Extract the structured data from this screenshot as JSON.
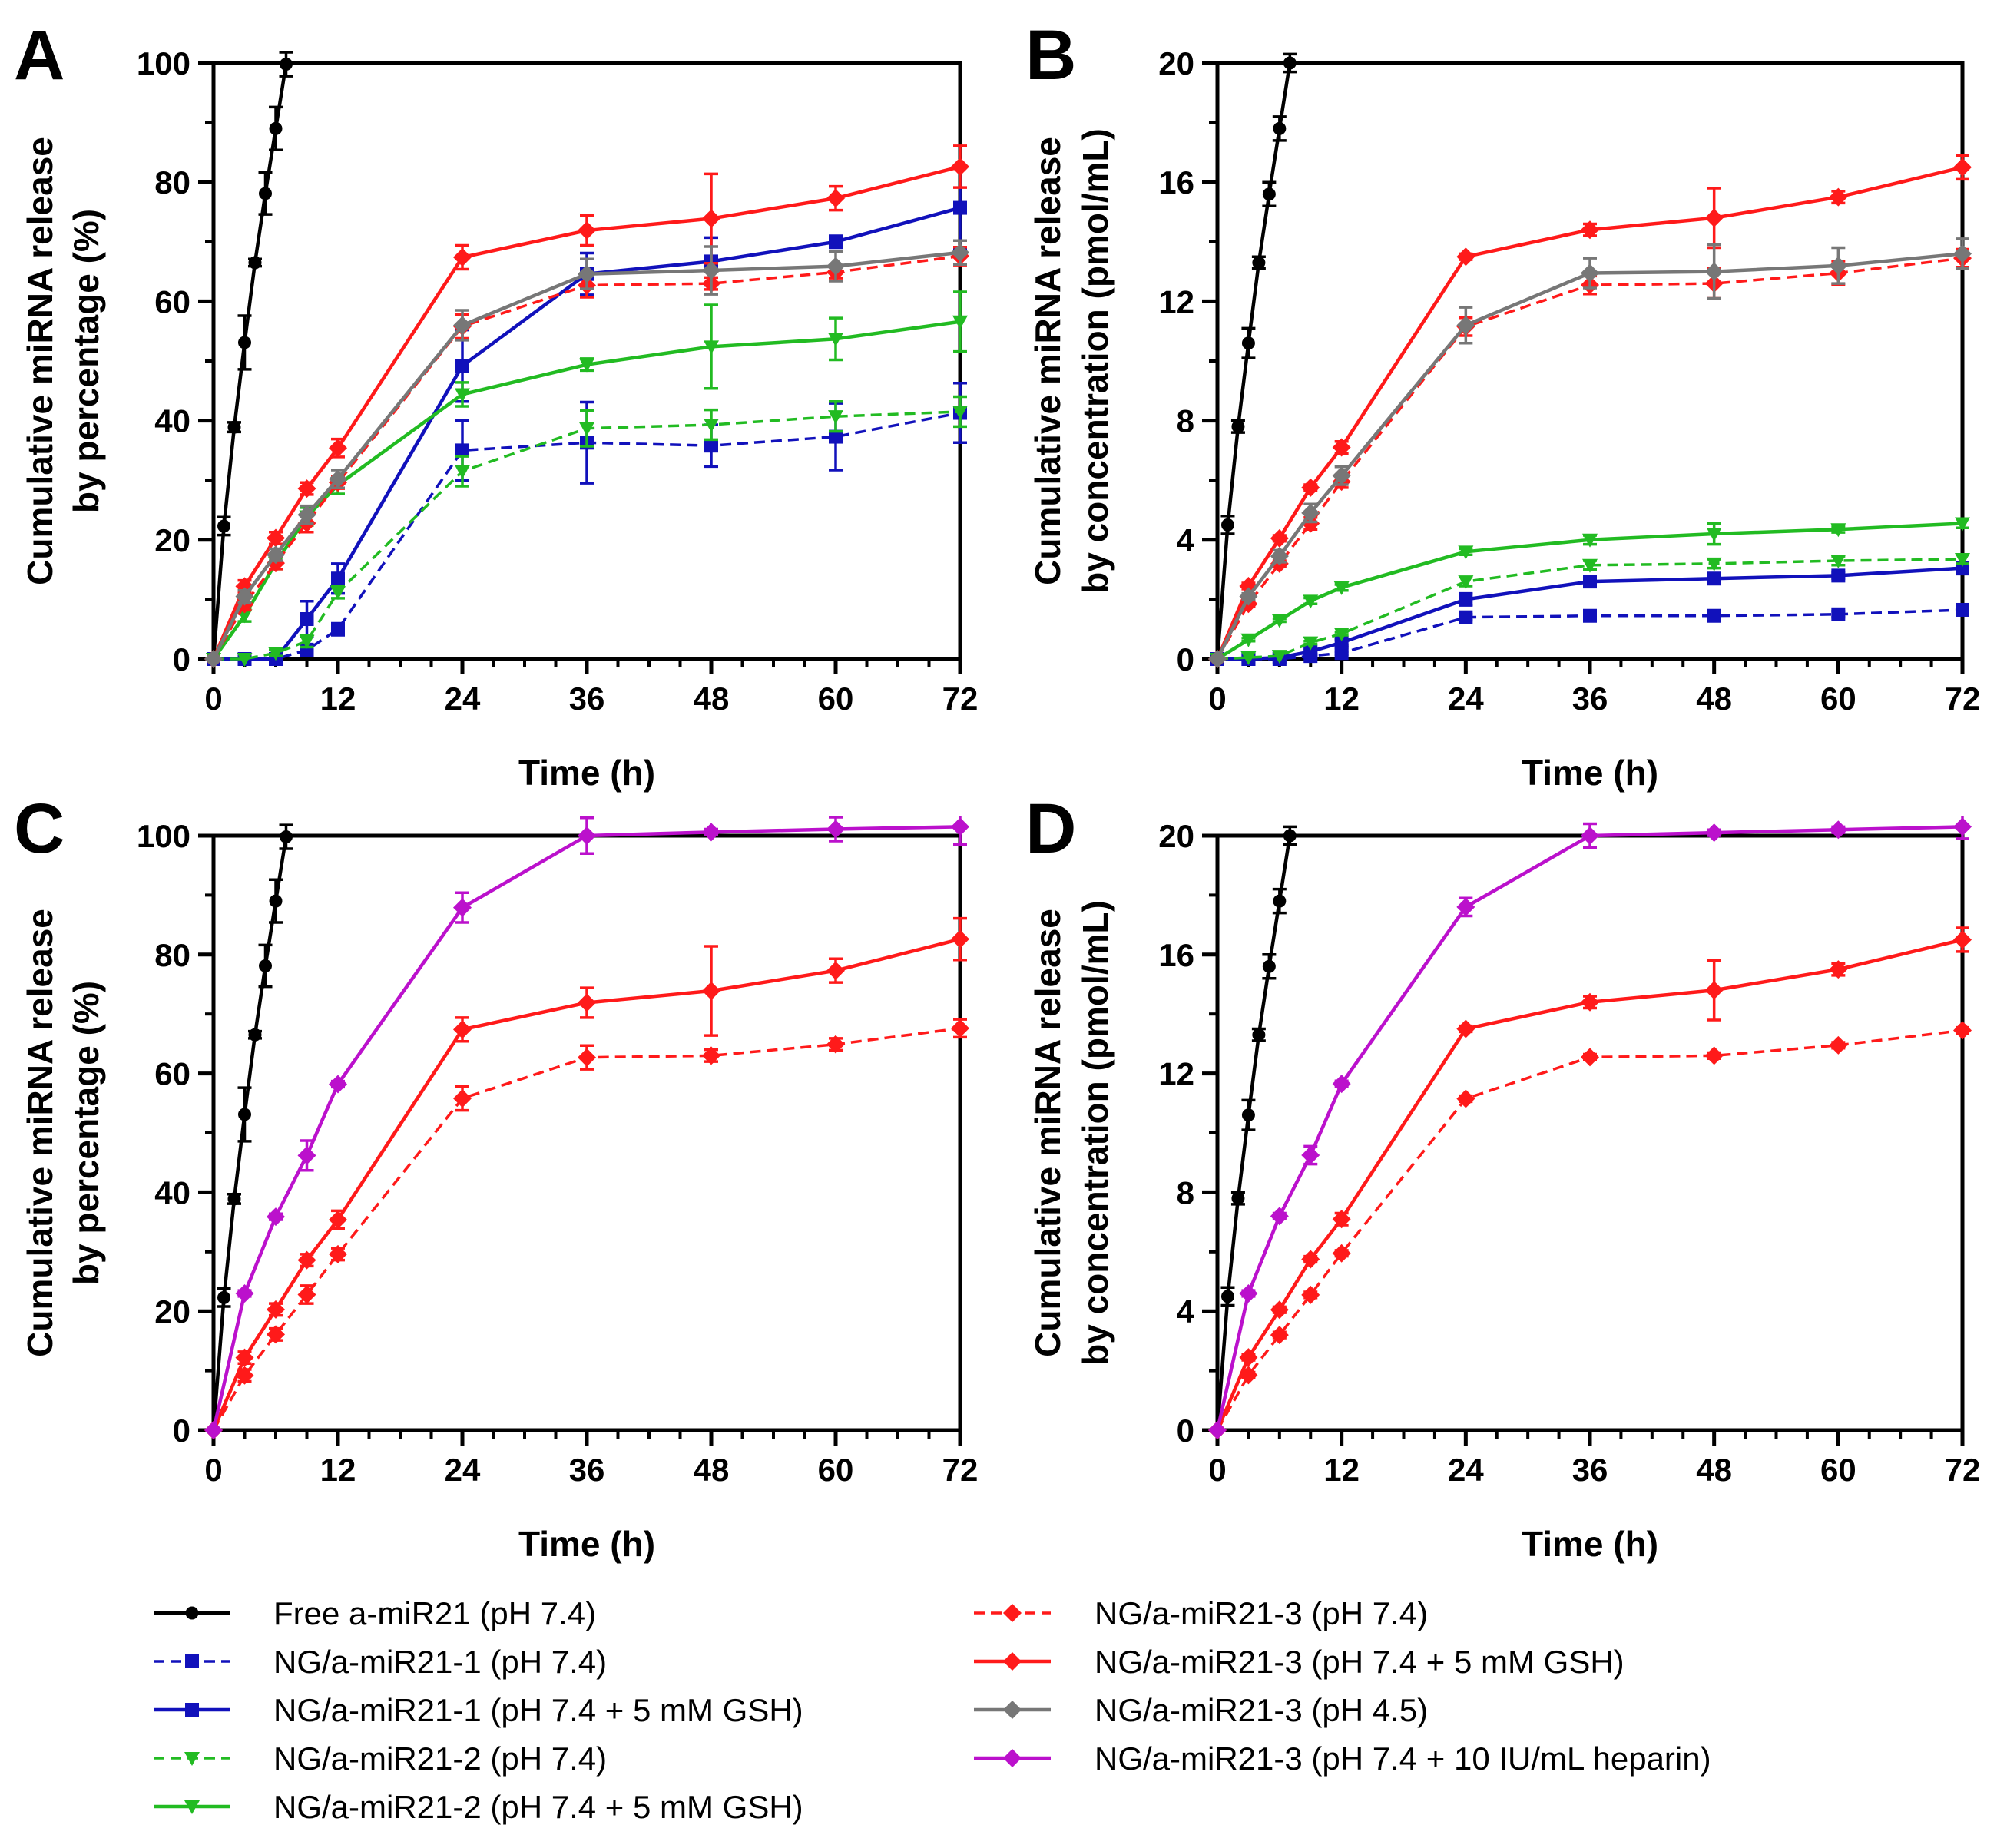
{
  "colors": {
    "free": "#000000",
    "ng1": "#1111bb",
    "ng2": "#22bb22",
    "ng3": "#ff1a1a",
    "ng3_ph45": "#777777",
    "ng3_heparin": "#bb11cc"
  },
  "legend": [
    {
      "key": "free",
      "label": "Free a-miR21 (pH 7.4)",
      "marker": "circle",
      "dash": false,
      "color_key": "free"
    },
    {
      "key": "ng1_74",
      "label": "NG/a-miR21-1 (pH 7.4)",
      "marker": "square",
      "dash": true,
      "color_key": "ng1"
    },
    {
      "key": "ng1_gsh",
      "label": "NG/a-miR21-1 (pH 7.4 + 5 mM GSH)",
      "marker": "square",
      "dash": false,
      "color_key": "ng1"
    },
    {
      "key": "ng2_74",
      "label": "NG/a-miR21-2 (pH 7.4)",
      "marker": "triangle",
      "dash": true,
      "color_key": "ng2"
    },
    {
      "key": "ng2_gsh",
      "label": "NG/a-miR21-2 (pH 7.4 + 5 mM GSH)",
      "marker": "triangle",
      "dash": false,
      "color_key": "ng2"
    },
    {
      "key": "ng3_74",
      "label": "NG/a-miR21-3 (pH 7.4)",
      "marker": "diamond",
      "dash": true,
      "color_key": "ng3"
    },
    {
      "key": "ng3_gsh",
      "label": "NG/a-miR21-3 (pH 7.4 + 5 mM GSH)",
      "marker": "diamond",
      "dash": false,
      "color_key": "ng3"
    },
    {
      "key": "ng3_45",
      "label": "NG/a-miR21-3 (pH 4.5)",
      "marker": "diamond",
      "dash": false,
      "color_key": "ng3_ph45"
    },
    {
      "key": "ng3_hep",
      "label": "NG/a-miR21-3 (pH 7.4 + 10 IU/mL heparin)",
      "marker": "diamond",
      "dash": false,
      "color_key": "ng3_heparin"
    }
  ],
  "chart_data": [
    {
      "panel": "A",
      "type": "line",
      "xlabel": "Time (h)",
      "ylabel": [
        "Cumulative miRNA release",
        "by percentage (%)"
      ],
      "xlim": [
        0,
        72
      ],
      "ylim": [
        0,
        100
      ],
      "xticks": [
        "0",
        "12",
        "24",
        "36",
        "48",
        "60",
        "72"
      ],
      "yticks": [
        "0",
        "20",
        "40",
        "60",
        "80",
        "100"
      ],
      "series": [
        {
          "key": "free",
          "x": [
            0,
            1,
            2,
            3,
            4,
            5,
            6,
            7
          ],
          "y": [
            0,
            22.3,
            38.9,
            53.1,
            66.5,
            78.1,
            89,
            99.8
          ],
          "err": [
            0,
            1.5,
            0.8,
            4.5,
            0.6,
            3.5,
            3.6,
            2
          ]
        },
        {
          "key": "ng1_74",
          "x": [
            0,
            3,
            6,
            9,
            12,
            24,
            36,
            48,
            60,
            72
          ],
          "y": [
            0,
            0,
            0,
            1.5,
            5,
            35,
            36.3,
            35.8,
            37.3,
            41.3
          ],
          "err": [
            0,
            0,
            0,
            1,
            1,
            5,
            6.8,
            3.5,
            5.6,
            5
          ]
        },
        {
          "key": "ng1_gsh",
          "x": [
            0,
            3,
            6,
            9,
            12,
            24,
            36,
            48,
            60,
            72
          ],
          "y": [
            0,
            0,
            0,
            6.7,
            13.5,
            49.2,
            64.6,
            66.7,
            70,
            75.7
          ],
          "err": [
            0,
            0,
            0,
            3,
            2.5,
            6,
            3.5,
            4,
            1,
            7
          ]
        },
        {
          "key": "ng2_74",
          "x": [
            0,
            3,
            6,
            9,
            12,
            24,
            36,
            48,
            60,
            72
          ],
          "y": [
            0,
            0,
            1,
            3,
            11.2,
            31.5,
            38.7,
            39.3,
            40.7,
            41.5
          ],
          "err": [
            0,
            0,
            0.5,
            1,
            1,
            2.5,
            3,
            2.5,
            2.5,
            2.5
          ]
        },
        {
          "key": "ng2_gsh",
          "x": [
            0,
            3,
            6,
            9,
            12,
            24,
            36,
            48,
            60,
            72
          ],
          "y": [
            0,
            7.3,
            16.1,
            23.9,
            29.2,
            44.4,
            49.4,
            52.4,
            53.7,
            56.6
          ],
          "err": [
            0,
            1,
            1,
            1.5,
            1.5,
            2,
            1,
            7,
            3.5,
            5
          ]
        },
        {
          "key": "ng3_74",
          "x": [
            0,
            3,
            6,
            9,
            12,
            24,
            36,
            48,
            60,
            72
          ],
          "y": [
            0,
            9.2,
            16.1,
            22.8,
            29.6,
            55.8,
            62.7,
            63,
            64.9,
            67.6
          ],
          "err": [
            0,
            1,
            1,
            1.5,
            1,
            2,
            2,
            1,
            1,
            1.5
          ]
        },
        {
          "key": "ng3_gsh",
          "x": [
            0,
            3,
            6,
            9,
            12,
            24,
            36,
            48,
            60,
            72
          ],
          "y": [
            0,
            12.2,
            20.3,
            28.6,
            35.4,
            67.4,
            71.9,
            73.9,
            77.3,
            82.6
          ],
          "err": [
            0,
            1,
            1,
            1,
            1.5,
            2,
            2.5,
            7.5,
            2,
            3.5
          ]
        },
        {
          "key": "ng3_45",
          "x": [
            0,
            3,
            6,
            9,
            12,
            24,
            36,
            48,
            60,
            72
          ],
          "y": [
            0,
            10.5,
            17.5,
            24.2,
            30.2,
            56,
            64.6,
            65.2,
            65.9,
            68.2
          ],
          "err": [
            0,
            1,
            1,
            1.5,
            1.5,
            2.5,
            2.5,
            4,
            2.5,
            2
          ]
        }
      ]
    },
    {
      "panel": "B",
      "type": "line",
      "xlabel": "Time (h)",
      "ylabel": [
        "Cumulative miRNA release",
        "by concentration (pmol/mL)"
      ],
      "xlim": [
        0,
        72
      ],
      "ylim": [
        0,
        20
      ],
      "xticks": [
        "0",
        "12",
        "24",
        "36",
        "48",
        "60",
        "72"
      ],
      "yticks": [
        "0",
        "4",
        "8",
        "12",
        "16",
        "20"
      ],
      "series": [
        {
          "key": "free",
          "x": [
            0,
            1,
            2,
            3,
            4,
            5,
            6,
            7
          ],
          "y": [
            0,
            4.5,
            7.8,
            10.6,
            13.3,
            15.6,
            17.8,
            20
          ],
          "err": [
            0,
            0.3,
            0.2,
            0.5,
            0.2,
            0.4,
            0.4,
            0.3
          ]
        },
        {
          "key": "ng1_74",
          "x": [
            0,
            3,
            6,
            9,
            12,
            24,
            36,
            48,
            60,
            72
          ],
          "y": [
            0,
            0,
            0,
            0.1,
            0.2,
            1.4,
            1.45,
            1.45,
            1.5,
            1.65
          ],
          "err": [
            0,
            0,
            0,
            0.05,
            0.05,
            0.1,
            0.1,
            0.1,
            0.1,
            0.1
          ]
        },
        {
          "key": "ng1_gsh",
          "x": [
            0,
            3,
            6,
            9,
            12,
            24,
            36,
            48,
            60,
            72
          ],
          "y": [
            0,
            0,
            0.05,
            0.25,
            0.55,
            2,
            2.6,
            2.7,
            2.8,
            3.05
          ],
          "err": [
            0,
            0,
            0.05,
            0.1,
            0.1,
            0.2,
            0.15,
            0.15,
            0.1,
            0.2
          ]
        },
        {
          "key": "ng2_74",
          "x": [
            0,
            3,
            6,
            9,
            12,
            24,
            36,
            48,
            60,
            72
          ],
          "y": [
            0,
            0.05,
            0.1,
            0.55,
            0.85,
            2.6,
            3.15,
            3.2,
            3.3,
            3.35
          ],
          "err": [
            0,
            0,
            0,
            0.05,
            0.05,
            0.15,
            0.15,
            0.15,
            0.15,
            0.15
          ]
        },
        {
          "key": "ng2_gsh",
          "x": [
            0,
            3,
            6,
            9,
            12,
            24,
            36,
            48,
            60,
            72
          ],
          "y": [
            0,
            0.65,
            1.3,
            1.95,
            2.4,
            3.6,
            4,
            4.2,
            4.35,
            4.55
          ],
          "err": [
            0,
            0.05,
            0.05,
            0.1,
            0.1,
            0.1,
            0.15,
            0.35,
            0.1,
            0.15
          ]
        },
        {
          "key": "ng3_74",
          "x": [
            0,
            3,
            6,
            9,
            12,
            24,
            36,
            48,
            60,
            72
          ],
          "y": [
            0,
            1.85,
            3.2,
            4.55,
            5.95,
            11.15,
            12.55,
            12.6,
            12.95,
            13.45
          ],
          "err": [
            0,
            0.1,
            0.1,
            0.2,
            0.2,
            0.3,
            0.3,
            0.5,
            0.4,
            0.3
          ]
        },
        {
          "key": "ng3_gsh",
          "x": [
            0,
            3,
            6,
            9,
            12,
            24,
            36,
            48,
            60,
            72
          ],
          "y": [
            0,
            2.45,
            4.05,
            5.75,
            7.1,
            13.5,
            14.4,
            14.8,
            15.5,
            16.5
          ],
          "err": [
            0,
            0.1,
            0.1,
            0.1,
            0.2,
            0.1,
            0.2,
            1,
            0.2,
            0.4
          ]
        },
        {
          "key": "ng3_45",
          "x": [
            0,
            3,
            6,
            9,
            12,
            24,
            36,
            48,
            60,
            72
          ],
          "y": [
            0,
            2.1,
            3.45,
            4.9,
            6.15,
            11.2,
            12.95,
            13,
            13.2,
            13.6
          ],
          "err": [
            0,
            0.1,
            0.2,
            0.3,
            0.3,
            0.6,
            0.5,
            0.9,
            0.6,
            0.5
          ]
        }
      ]
    },
    {
      "panel": "C",
      "type": "line",
      "xlabel": "Time (h)",
      "ylabel": [
        "Cumulative miRNA release",
        "by percentage (%)"
      ],
      "xlim": [
        0,
        72
      ],
      "ylim": [
        0,
        100
      ],
      "xticks": [
        "0",
        "12",
        "24",
        "36",
        "48",
        "60",
        "72"
      ],
      "yticks": [
        "0",
        "20",
        "40",
        "60",
        "80",
        "100"
      ],
      "series": [
        {
          "key": "free",
          "x": [
            0,
            1,
            2,
            3,
            4,
            5,
            6,
            7
          ],
          "y": [
            0,
            22.3,
            38.9,
            53.1,
            66.5,
            78.1,
            89,
            99.8
          ],
          "err": [
            0,
            1.5,
            0.8,
            4.5,
            0.6,
            3.5,
            3.6,
            2
          ]
        },
        {
          "key": "ng3_74",
          "x": [
            0,
            3,
            6,
            9,
            12,
            24,
            36,
            48,
            60,
            72
          ],
          "y": [
            0,
            9.2,
            16.1,
            22.8,
            29.6,
            55.8,
            62.7,
            63,
            64.9,
            67.6
          ],
          "err": [
            0,
            1,
            1,
            1.5,
            1,
            2,
            2,
            1,
            1,
            1.5
          ]
        },
        {
          "key": "ng3_gsh",
          "x": [
            0,
            3,
            6,
            9,
            12,
            24,
            36,
            48,
            60,
            72
          ],
          "y": [
            0,
            12.2,
            20.3,
            28.6,
            35.4,
            67.4,
            71.9,
            73.9,
            77.3,
            82.6
          ],
          "err": [
            0,
            1,
            1,
            1,
            1.5,
            2,
            2.5,
            7.5,
            2,
            3.5
          ]
        },
        {
          "key": "ng3_hep",
          "x": [
            0,
            3,
            6,
            9,
            12,
            24,
            36,
            48,
            60,
            72
          ],
          "y": [
            0,
            23,
            35.9,
            46.2,
            58.2,
            87.9,
            100,
            100.6,
            101.1,
            101.5
          ],
          "err": [
            0,
            0.5,
            0.5,
            2.5,
            0.5,
            2.5,
            3,
            0.5,
            2,
            3
          ]
        }
      ]
    },
    {
      "panel": "D",
      "type": "line",
      "xlabel": "Time (h)",
      "ylabel": [
        "Cumulative miRNA release",
        "by concentration (pmol/mL)"
      ],
      "xlim": [
        0,
        72
      ],
      "ylim": [
        0,
        20
      ],
      "xticks": [
        "0",
        "12",
        "24",
        "36",
        "48",
        "60",
        "72"
      ],
      "yticks": [
        "0",
        "4",
        "8",
        "12",
        "16",
        "20"
      ],
      "series": [
        {
          "key": "free",
          "x": [
            0,
            1,
            2,
            3,
            4,
            5,
            6,
            7
          ],
          "y": [
            0,
            4.5,
            7.8,
            10.6,
            13.3,
            15.6,
            17.8,
            20
          ],
          "err": [
            0,
            0.3,
            0.2,
            0.5,
            0.2,
            0.4,
            0.4,
            0.3
          ]
        },
        {
          "key": "ng3_74",
          "x": [
            0,
            3,
            6,
            9,
            12,
            24,
            36,
            48,
            60,
            72
          ],
          "y": [
            0,
            1.85,
            3.2,
            4.55,
            5.95,
            11.15,
            12.55,
            12.6,
            12.95,
            13.45
          ],
          "err": [
            0,
            0.1,
            0.1,
            0.1,
            0.1,
            0.1,
            0.1,
            0.1,
            0.1,
            0.1
          ]
        },
        {
          "key": "ng3_gsh",
          "x": [
            0,
            3,
            6,
            9,
            12,
            24,
            36,
            48,
            60,
            72
          ],
          "y": [
            0,
            2.45,
            4.05,
            5.75,
            7.1,
            13.5,
            14.4,
            14.8,
            15.5,
            16.5
          ],
          "err": [
            0,
            0.1,
            0.1,
            0.1,
            0.2,
            0.1,
            0.2,
            1,
            0.2,
            0.4
          ]
        },
        {
          "key": "ng3_hep",
          "x": [
            0,
            3,
            6,
            9,
            12,
            24,
            36,
            48,
            60,
            72
          ],
          "y": [
            0,
            4.6,
            7.2,
            9.25,
            11.65,
            17.6,
            20,
            20.1,
            20.2,
            20.3
          ],
          "err": [
            0,
            0.1,
            0.1,
            0.3,
            0.1,
            0.3,
            0.4,
            0.1,
            0.1,
            0.4
          ]
        }
      ]
    }
  ]
}
